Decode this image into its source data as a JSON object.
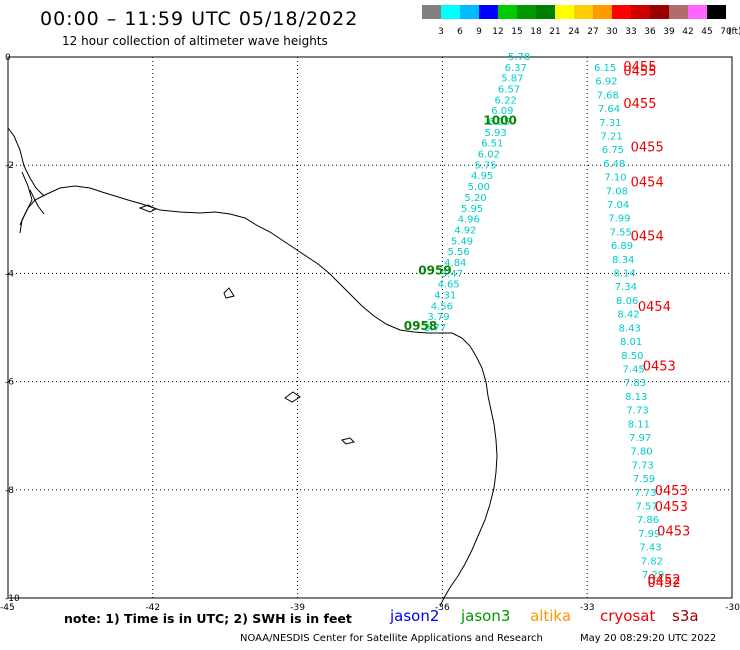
{
  "header": {
    "title": "00:00 – 11:59 UTC 05/18/2022",
    "subtitle": "12 hour collection of altimeter wave heights"
  },
  "color_scale": {
    "labels": [
      "3",
      "6",
      "9",
      "12",
      "15",
      "18",
      "21",
      "24",
      "27",
      "30",
      "33",
      "36",
      "39",
      "42",
      "45",
      "70"
    ],
    "unit": "(ft)",
    "colors": [
      "#808080",
      "#00ffff",
      "#00bbff",
      "#0000ff",
      "#00cc00",
      "#009900",
      "#008000",
      "#ffff00",
      "#ffcc00",
      "#ff9900",
      "#ff0000",
      "#cc0000",
      "#990000",
      "#b36b6b",
      "#ff66ff",
      "#000000"
    ]
  },
  "axes": {
    "x_ticks": [
      "-45",
      "-42",
      "-39",
      "-36",
      "-33",
      "-30"
    ],
    "y_ticks": [
      "0",
      "-2",
      "-4",
      "-6",
      "-8",
      "-10"
    ]
  },
  "chart_data": {
    "type": "scatter",
    "xlim": [
      -45,
      -30
    ],
    "ylim": [
      -10,
      0
    ],
    "grid": true,
    "jason3_track": {
      "color": "#00cccc",
      "heights_ft": [
        "5.78",
        "6.37",
        "5.87",
        "6.57",
        "6.22",
        "6.09",
        "6.25",
        "5.93",
        "6.51",
        "6.02",
        "5.75",
        "4.95",
        "5.00",
        "5.20",
        "5.95",
        "4.96",
        "4.92",
        "5.49",
        "5.56",
        "4.84",
        "3.47",
        "4.65",
        "4.31",
        "4.56",
        "3.79",
        "3.77"
      ],
      "time_labels": [
        {
          "text": "1000",
          "lon": -35.15,
          "lat": -1.17
        },
        {
          "text": "0959",
          "lon": -36.5,
          "lat": -3.95
        },
        {
          "text": "0958",
          "lon": -36.8,
          "lat": -4.97
        }
      ]
    },
    "cryosat_track": {
      "color": "#00cccc",
      "heights_ft": [
        "6.15",
        "6.92",
        "7.68",
        "7.64",
        "7.31",
        "7.21",
        "6.75",
        "6.48",
        "7.10",
        "7.08",
        "7.04",
        "7.99",
        "7.55",
        "6.89",
        "8.34",
        "8.14",
        "7.34",
        "8.06",
        "8.42",
        "8.43",
        "8.01",
        "8.50",
        "7.45",
        "7.83",
        "8.13",
        "7.73",
        "8.11",
        "7.97",
        "7.80",
        "7.73",
        "7.59",
        "7.73",
        "7.57",
        "7.86",
        "7.99",
        "7.43",
        "7.82",
        "7.29"
      ],
      "time_labels": [
        {
          "text": "0455",
          "lon": -32.25,
          "lat": -0.17
        },
        {
          "text": "0455",
          "lon": -32.25,
          "lat": -0.25
        },
        {
          "text": "0455",
          "lon": -32.25,
          "lat": -0.85
        },
        {
          "text": "0455",
          "lon": -32.1,
          "lat": -1.65
        },
        {
          "text": "0454",
          "lon": -32.1,
          "lat": -2.3
        },
        {
          "text": "0454",
          "lon": -32.1,
          "lat": -3.3
        },
        {
          "text": "0454",
          "lon": -31.95,
          "lat": -4.6
        },
        {
          "text": "0453",
          "lon": -31.85,
          "lat": -5.7
        },
        {
          "text": "0453",
          "lon": -31.6,
          "lat": -8.0
        },
        {
          "text": "0453",
          "lon": -31.6,
          "lat": -8.3
        },
        {
          "text": "0453",
          "lon": -31.55,
          "lat": -8.75
        },
        {
          "text": "0452",
          "lon": -31.75,
          "lat": -9.65
        },
        {
          "text": "0452",
          "lon": -31.75,
          "lat": -9.7
        }
      ]
    }
  },
  "footer": {
    "note": "note:  1) Time is in UTC;  2) SWH is in feet",
    "satellites": [
      {
        "name": "jason2",
        "color": "#0000ee"
      },
      {
        "name": "jason3",
        "color": "#009900"
      },
      {
        "name": "altika",
        "color": "#ff9900"
      },
      {
        "name": "cryosat",
        "color": "#ee0000"
      },
      {
        "name": "s3a",
        "color": "#990000"
      }
    ],
    "credit": "NOAA/NESDIS Center for Satellite Applications and Research",
    "timestamp": "May 20 08:29:20 UTC 2022"
  }
}
